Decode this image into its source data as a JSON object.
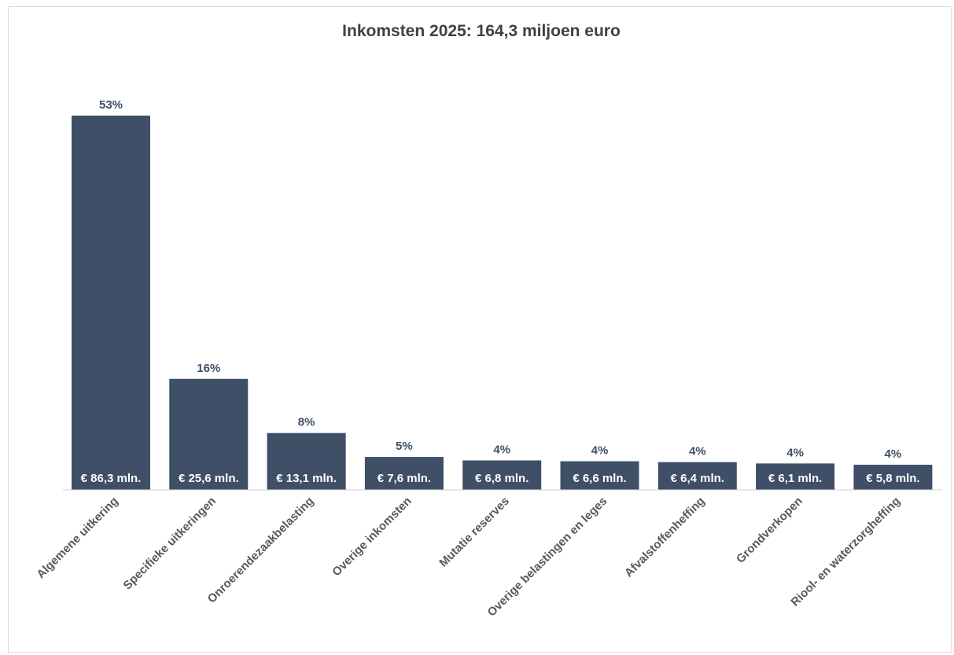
{
  "chart_data": {
    "type": "bar",
    "title": "Inkomsten 2025: 164,3 miljoen euro",
    "xlabel": "",
    "ylabel": "",
    "ylim": [
      0,
      92
    ],
    "grid": false,
    "legend": "none",
    "bar_color": "#3f4f67",
    "categories": [
      "Algemene uitkering",
      "Specifieke uitkeringen",
      "Onroerendezaakbelasting",
      "Overige inkomsten",
      "Mutatie reserves",
      "Overige belastingen en leges",
      "Afvalstoffenheffing",
      "Grondverkopen",
      "Riool- en waterzorgheffing"
    ],
    "values": [
      86.3,
      25.6,
      13.1,
      7.6,
      6.8,
      6.6,
      6.4,
      6.1,
      5.8
    ],
    "percent_labels": [
      "53%",
      "16%",
      "8%",
      "5%",
      "4%",
      "4%",
      "4%",
      "4%",
      "4%"
    ],
    "value_labels": [
      "€ 86,3 mln.",
      "€ 25,6 mln.",
      "€ 13,1 mln.",
      "€ 7,6 mln.",
      "€ 6,8 mln.",
      "€ 6,6 mln.",
      "€ 6,4 mln.",
      "€ 6,1 mln.",
      "€ 5,8 mln."
    ]
  }
}
